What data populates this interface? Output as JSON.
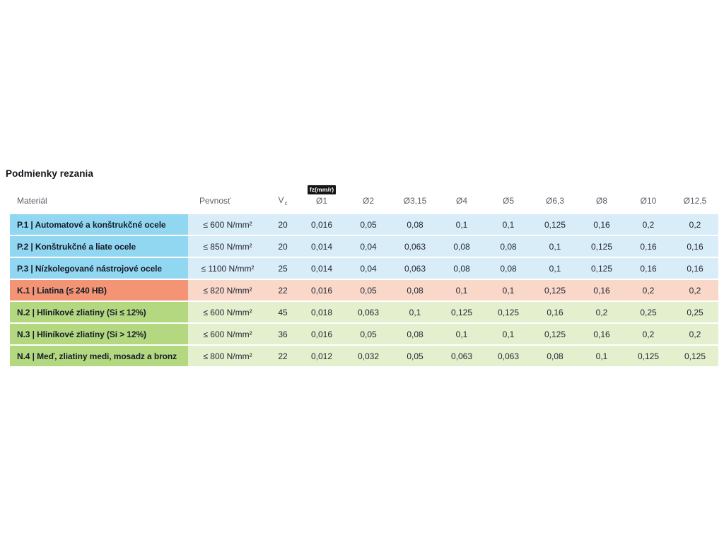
{
  "page": {
    "title": "Podmienky rezania"
  },
  "table": {
    "headers": {
      "material": "Materiál",
      "pevnost": "Pevnosť",
      "vc_main": "V",
      "vc_sub": "c",
      "fz_badge": "fz(mm/r)",
      "diameters": [
        "Ø1",
        "Ø2",
        "Ø3,15",
        "Ø4",
        "Ø5",
        "Ø6,3",
        "Ø8",
        "Ø10",
        "Ø12,5"
      ]
    },
    "colors": {
      "p_dark": "#92d7f1",
      "p_light": "#d9edf8",
      "k_dark": "#f39475",
      "k_light": "#f9d8c9",
      "n_dark": "#b3d880",
      "n_light": "#e4efce"
    },
    "rows": [
      {
        "group": "p",
        "material": "P.1 | Automatové a konštrukčné ocele",
        "pevnost": "≤ 600 N/mm²",
        "vc": "20",
        "fz": [
          "0,016",
          "0,05",
          "0,08",
          "0,1",
          "0,1",
          "0,125",
          "0,16",
          "0,2",
          "0,2"
        ]
      },
      {
        "group": "p",
        "material": "P.2 | Konštrukčné a liate ocele",
        "pevnost": "≤ 850 N/mm²",
        "vc": "20",
        "fz": [
          "0,014",
          "0,04",
          "0,063",
          "0,08",
          "0,08",
          "0,1",
          "0,125",
          "0,16",
          "0,16"
        ]
      },
      {
        "group": "p",
        "material": "P.3 | Nízkolegované nástrojové ocele",
        "pevnost": "≤ 1100 N/mm²",
        "vc": "25",
        "fz": [
          "0,014",
          "0,04",
          "0,063",
          "0,08",
          "0,08",
          "0,1",
          "0,125",
          "0,16",
          "0,16"
        ]
      },
      {
        "group": "k",
        "material": "K.1 | Liatina (≤ 240 HB)",
        "pevnost": "≤ 820 N/mm²",
        "vc": "22",
        "fz": [
          "0,016",
          "0,05",
          "0,08",
          "0,1",
          "0,1",
          "0,125",
          "0,16",
          "0,2",
          "0,2"
        ]
      },
      {
        "group": "n",
        "material": "N.2 | Hliníkové zliatiny (Si ≤ 12%)",
        "pevnost": "≤ 600 N/mm²",
        "vc": "45",
        "fz": [
          "0,018",
          "0,063",
          "0,1",
          "0,125",
          "0,125",
          "0,16",
          "0,2",
          "0,25",
          "0,25"
        ]
      },
      {
        "group": "n",
        "material": "N.3 | Hliníkové zliatiny (Si > 12%)",
        "pevnost": "≤ 600 N/mm²",
        "vc": "36",
        "fz": [
          "0,016",
          "0,05",
          "0,08",
          "0,1",
          "0,1",
          "0,125",
          "0,16",
          "0,2",
          "0,2"
        ]
      },
      {
        "group": "n",
        "material": "N.4 | Meď, zliatiny medi, mosadz a bronz",
        "pevnost": "≤ 800 N/mm²",
        "vc": "22",
        "fz": [
          "0,012",
          "0,032",
          "0,05",
          "0,063",
          "0,063",
          "0,08",
          "0,1",
          "0,125",
          "0,125"
        ]
      }
    ]
  }
}
